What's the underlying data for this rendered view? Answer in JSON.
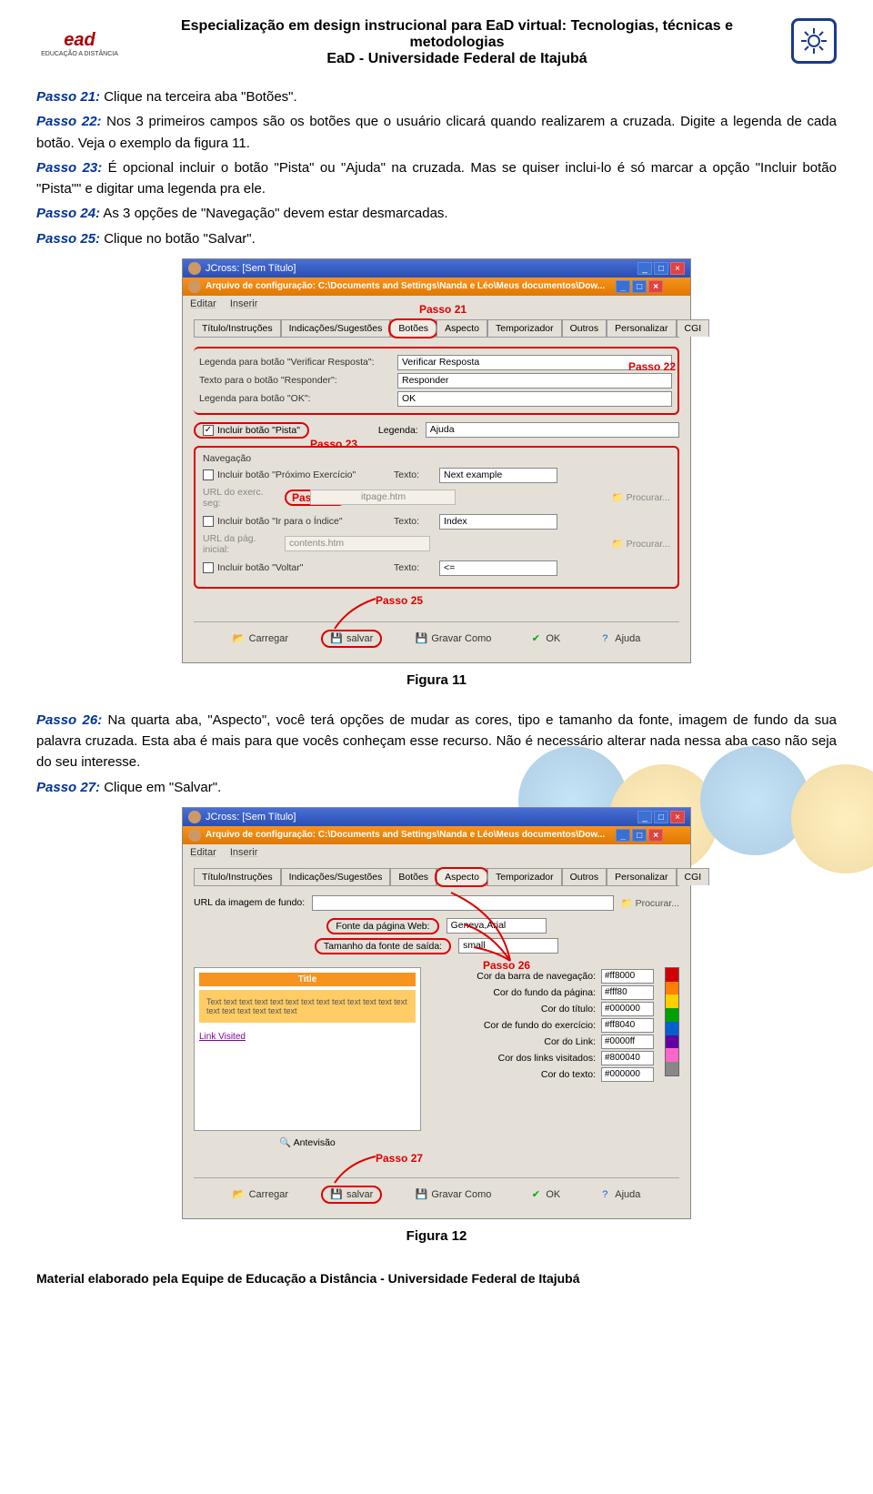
{
  "header": {
    "title1": "Especialização em design instrucional para EaD virtual: Tecnologias, técnicas e metodologias",
    "title2": "EaD -  Universidade Federal de Itajubá",
    "logo_left_main": "ead",
    "logo_left_sub": "EDUCAÇÃO A DISTÂNCIA"
  },
  "body": {
    "p21_label": "Passo 21:",
    "p21_text": " Clique na terceira aba \"Botões\".",
    "p22_label": "Passo 22:",
    "p22_text": " Nos 3 primeiros campos são os botões que o usuário clicará quando realizarem a cruzada. Digite a legenda de cada botão. Veja o exemplo da figura 11.",
    "p23_label": "Passo 23:",
    "p23_text": " É opcional incluir o botão \"Pista\" ou \"Ajuda\" na cruzada. Mas se quiser inclui-lo é só marcar a opção \"Incluir botão \"Pista\"\" e digitar uma legenda pra ele.",
    "p24_label": "Passo 24:",
    "p24_text": " As 3 opções de \"Navegação\" devem estar desmarcadas.",
    "p25_label": "Passo 25:",
    "p25_text": " Clique no botão \"Salvar\".",
    "fig11": "Figura 11",
    "p26_label": "Passo 26:",
    "p26_text": " Na quarta aba, \"Aspecto\", você terá opções de mudar as cores, tipo e tamanho da fonte, imagem de fundo da sua palavra cruzada. Esta aba é mais para que vocês conheçam esse recurso. Não é necessário alterar nada nessa aba caso não seja do seu interesse.",
    "p27_label": "Passo 27:",
    "p27_text": " Clique em \"Salvar\".",
    "fig12": "Figura 12"
  },
  "ss1": {
    "title": "JCross: [Sem Título]",
    "subtitle": "Arquivo de configuração: C:\\Documents and Settings\\Nanda e Léo\\Meus documentos\\Dow...",
    "menu_editar": "Editar",
    "menu_inserir": "Inserir",
    "tabs": [
      "Título/Instruções",
      "Indicações/Sugestões",
      "Botões",
      "Aspecto",
      "Temporizador",
      "Outros",
      "Personalizar",
      "CGI"
    ],
    "label_passo21": "Passo 21",
    "f1_label": "Legenda para botão \"Verificar Resposta\":",
    "f1_val": "Verificar Resposta",
    "f2_label": "Texto para o botão \"Responder\":",
    "f2_val": "Responder",
    "f3_label": "Legenda para botão \"OK\":",
    "f3_val": "OK",
    "label_passo22": "Passo 22",
    "chk_pista": "Incluir botão \"Pista\"",
    "legenda_lbl": "Legenda:",
    "legenda_val": "Ajuda",
    "label_passo23": "Passo 23",
    "nav_title": "Navegação",
    "nav1": "Incluir botão \"Próximo Exercício\"",
    "nav1_texto": "Next example",
    "label_passo24": "Passo 24",
    "url1_lbl": "URL do exerc. seg:",
    "url1_val": "itpage.htm",
    "nav2": "Incluir botão \"Ir para o Índice\"",
    "nav2_texto": "Index",
    "url2_lbl": "URL da pág. inicial:",
    "url2_val": "contents.htm",
    "nav3": "Incluir botão \"Voltar\"",
    "nav3_texto": "<=",
    "texto_lbl": "Texto:",
    "procurar": "Procurar...",
    "label_passo25": "Passo 25",
    "btn_carregar": "Carregar",
    "btn_salvar": "salvar",
    "btn_gravar": "Gravar Como",
    "btn_ok": "OK",
    "btn_ajuda": "Ajuda"
  },
  "ss2": {
    "title": "JCross: [Sem Título]",
    "subtitle": "Arquivo de configuração: C:\\Documents and Settings\\Nanda e Léo\\Meus documentos\\Dow...",
    "menu_editar": "Editar",
    "menu_inserir": "Inserir",
    "tabs": [
      "Título/Instruções",
      "Indicações/Sugestões",
      "Botões",
      "Aspecto",
      "Temporizador",
      "Outros",
      "Personalizar",
      "CGI"
    ],
    "url_img_lbl": "URL da imagem de fundo:",
    "procurar": "Procurar...",
    "fonte_web_lbl": "Fonte da página Web:",
    "fonte_web_val": "Geneva,Arial",
    "tam_fonte_lbl": "Tamanho da fonte de saída:",
    "tam_fonte_val": "small",
    "preview_title": "Title",
    "preview_text": "Text text text text text text text text text text text text text text text text text text text",
    "preview_link": "Link Visited",
    "antevisao": "Antevisão",
    "label_passo26": "Passo 26",
    "cf": [
      {
        "lbl": "Cor da barra de navegação:",
        "val": "#ff8000"
      },
      {
        "lbl": "Cor do fundo da página:",
        "val": "#fff80"
      },
      {
        "lbl": "Cor do título:",
        "val": "#000000"
      },
      {
        "lbl": "Cor de fundo do exercício:",
        "val": "#ff8040"
      },
      {
        "lbl": "Cor do Link:",
        "val": "#0000ff"
      },
      {
        "lbl": "Cor dos links visitados:",
        "val": "#800040"
      },
      {
        "lbl": "Cor do texto:",
        "val": "#000000"
      }
    ],
    "colours_strip": [
      "#d00000",
      "#ff8000",
      "#ffd000",
      "#00a000",
      "#0060d0",
      "#6000a0",
      "#ff66cc",
      "#888"
    ],
    "label_passo27": "Passo 27",
    "btn_carregar": "Carregar",
    "btn_salvar": "salvar",
    "btn_gravar": "Gravar Como",
    "btn_ok": "OK",
    "btn_ajuda": "Ajuda"
  },
  "footer": "Material elaborado pela Equipe de Educação a Distância - Universidade Federal de Itajubá"
}
